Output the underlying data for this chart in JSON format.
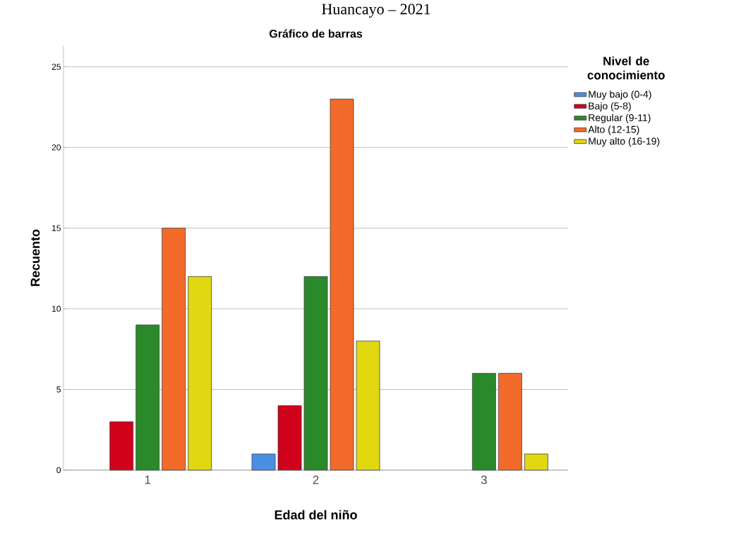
{
  "chart_data": {
    "type": "bar",
    "title": "Gráfico de barras",
    "xlabel": "Edad del niño",
    "ylabel": "Recuento",
    "legend_title": "Nivel de conocimiento",
    "annotations": [
      "Huancayo – 2021"
    ],
    "categories": [
      "1",
      "2",
      "3"
    ],
    "series": [
      {
        "name": "Muy bajo (0-4)",
        "color": "#4a90e2",
        "values": [
          null,
          1,
          null
        ]
      },
      {
        "name": "Bajo (5-8)",
        "color": "#d0021b",
        "values": [
          3,
          4,
          null
        ]
      },
      {
        "name": "Regular (9-11)",
        "color": "#2a8a2a",
        "values": [
          9,
          12,
          6
        ]
      },
      {
        "name": "Alto (12-15)",
        "color": "#f26b2a",
        "values": [
          15,
          23,
          6
        ]
      },
      {
        "name": "Muy alto (16-19)",
        "color": "#e2d811",
        "values": [
          12,
          8,
          1
        ]
      }
    ],
    "ylim": [
      0,
      26.3
    ],
    "yticks": [
      0,
      5,
      10,
      15,
      20,
      25
    ],
    "grid": "y",
    "legend": "top right"
  }
}
